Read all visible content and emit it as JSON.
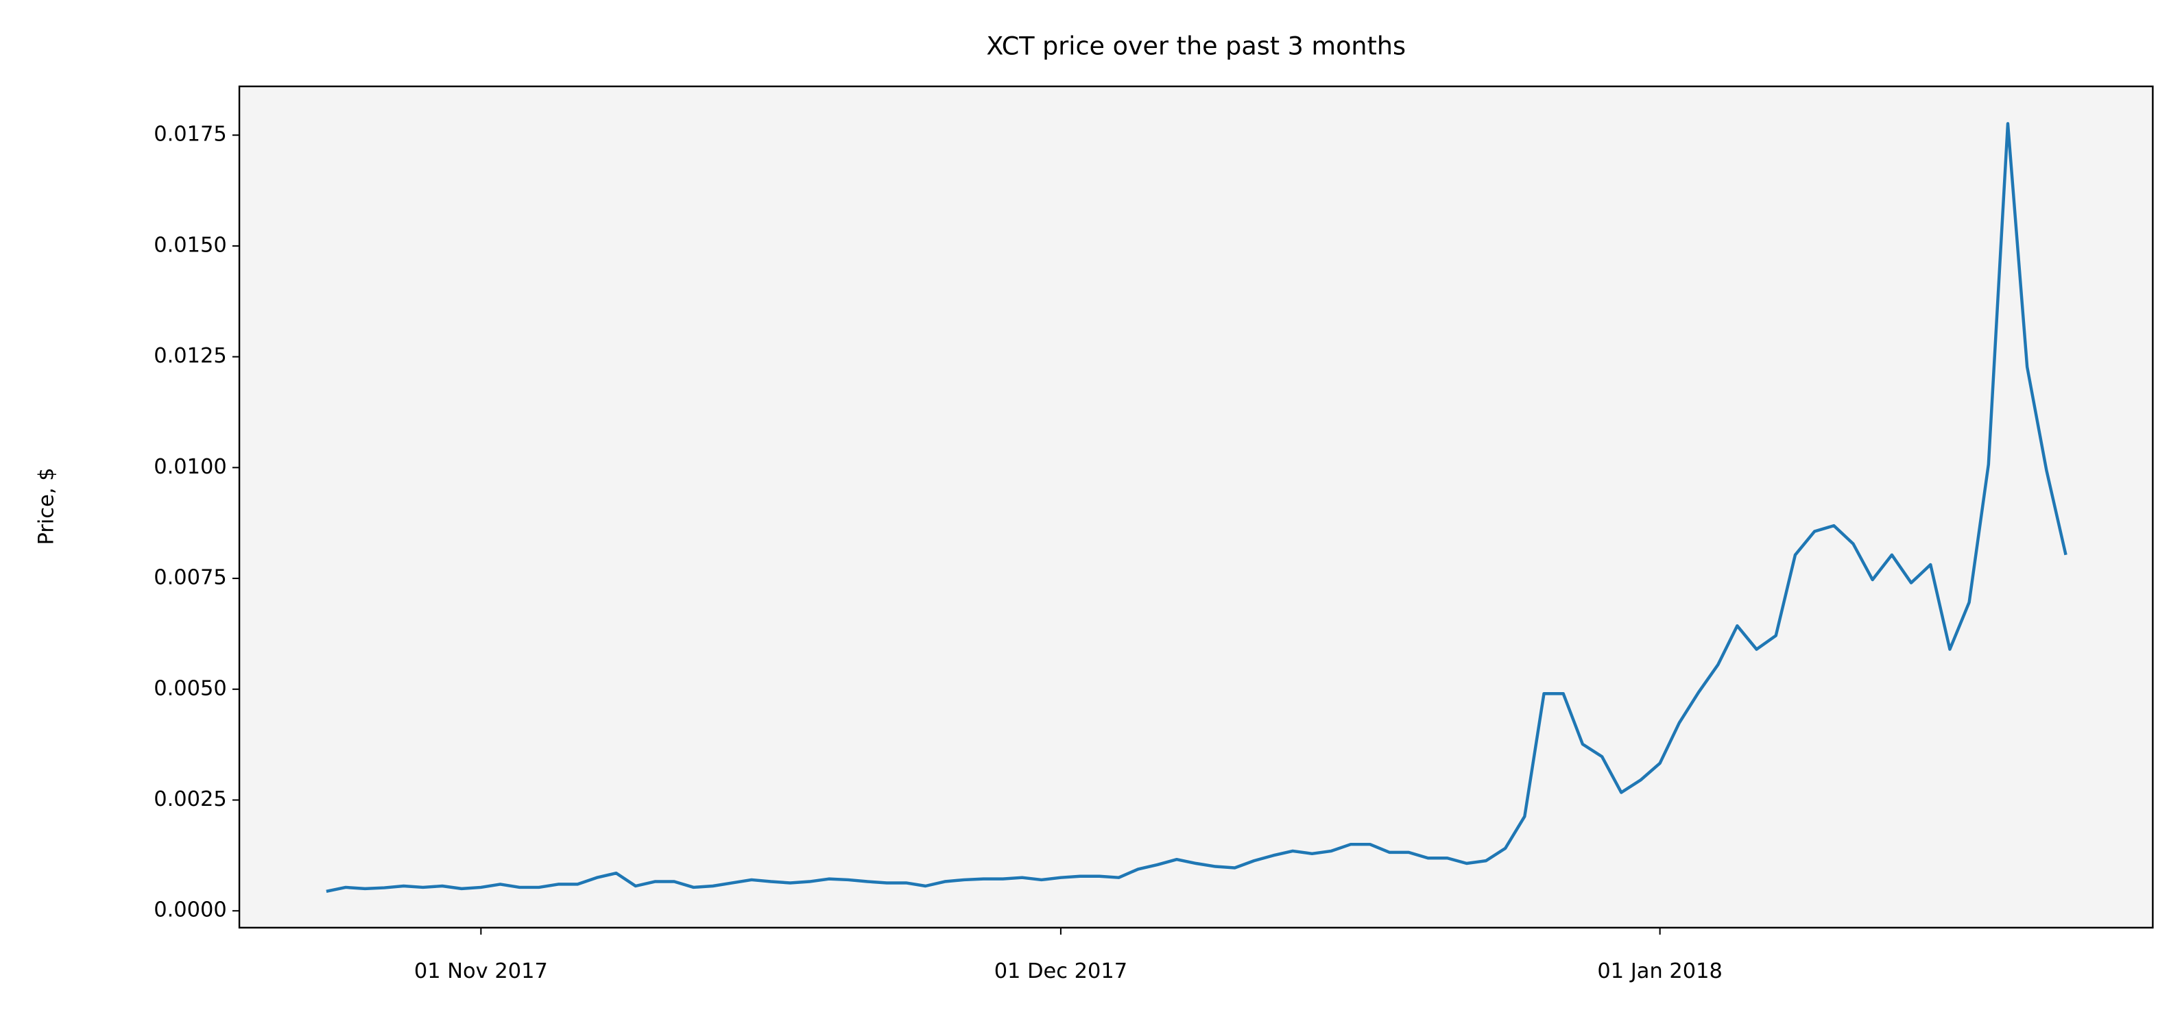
{
  "chart_data": {
    "type": "line",
    "title": "XCT price over the past 3 months",
    "ylabel": "Price, $",
    "x": [
      "2017-10-24",
      "2017-10-25",
      "2017-10-26",
      "2017-10-27",
      "2017-10-28",
      "2017-10-29",
      "2017-10-30",
      "2017-10-31",
      "2017-11-01",
      "2017-11-02",
      "2017-11-03",
      "2017-11-04",
      "2017-11-05",
      "2017-11-06",
      "2017-11-07",
      "2017-11-08",
      "2017-11-09",
      "2017-11-10",
      "2017-11-11",
      "2017-11-12",
      "2017-11-13",
      "2017-11-14",
      "2017-11-15",
      "2017-11-16",
      "2017-11-17",
      "2017-11-18",
      "2017-11-19",
      "2017-11-20",
      "2017-11-21",
      "2017-11-22",
      "2017-11-23",
      "2017-11-24",
      "2017-11-25",
      "2017-11-26",
      "2017-11-27",
      "2017-11-28",
      "2017-11-29",
      "2017-11-30",
      "2017-12-01",
      "2017-12-02",
      "2017-12-03",
      "2017-12-04",
      "2017-12-05",
      "2017-12-06",
      "2017-12-07",
      "2017-12-08",
      "2017-12-09",
      "2017-12-10",
      "2017-12-11",
      "2017-12-12",
      "2017-12-13",
      "2017-12-14",
      "2017-12-15",
      "2017-12-16",
      "2017-12-17",
      "2017-12-18",
      "2017-12-19",
      "2017-12-20",
      "2017-12-21",
      "2017-12-22",
      "2017-12-23",
      "2017-12-24",
      "2017-12-25",
      "2017-12-26",
      "2017-12-27",
      "2017-12-28",
      "2017-12-29",
      "2017-12-30",
      "2017-12-31",
      "2018-01-01",
      "2018-01-02",
      "2018-01-03",
      "2018-01-04",
      "2018-01-05",
      "2018-01-06",
      "2018-01-07",
      "2018-01-08",
      "2018-01-09",
      "2018-01-10",
      "2018-01-11",
      "2018-01-12",
      "2018-01-13",
      "2018-01-14",
      "2018-01-15",
      "2018-01-16",
      "2018-01-17",
      "2018-01-18",
      "2018-01-19",
      "2018-01-20",
      "2018-01-21",
      "2018-01-22"
    ],
    "values": [
      0.00044,
      0.00053,
      0.0005,
      0.00052,
      0.00056,
      0.00053,
      0.00056,
      0.0005,
      0.00053,
      0.0006,
      0.00053,
      0.00053,
      0.0006,
      0.0006,
      0.00075,
      0.00085,
      0.00056,
      0.00066,
      0.00066,
      0.00053,
      0.00056,
      0.00063,
      0.0007,
      0.00066,
      0.00063,
      0.00066,
      0.00072,
      0.0007,
      0.00066,
      0.00063,
      0.00063,
      0.00056,
      0.00066,
      0.0007,
      0.00072,
      0.00072,
      0.00075,
      0.0007,
      0.00075,
      0.00078,
      0.00078,
      0.00075,
      0.00094,
      0.00104,
      0.00116,
      0.00107,
      0.001,
      0.00097,
      0.00113,
      0.00125,
      0.00135,
      0.00129,
      0.00135,
      0.0015,
      0.0015,
      0.00132,
      0.00132,
      0.00119,
      0.00119,
      0.00107,
      0.00113,
      0.00141,
      0.00213,
      0.0049,
      0.0049,
      0.00376,
      0.00348,
      0.00267,
      0.00295,
      0.00333,
      0.00424,
      0.00493,
      0.00555,
      0.00643,
      0.0059,
      0.00621,
      0.00803,
      0.00856,
      0.00869,
      0.00828,
      0.00747,
      0.00803,
      0.0074,
      0.00781,
      0.0059,
      0.00696,
      0.01007,
      0.01776,
      0.01227,
      0.00994,
      0.00803
    ],
    "color": "#1f77b4",
    "xlim": [
      "2017-10-19T12:00",
      "2018-01-26T12:00"
    ],
    "xticks": [
      {
        "value": "2017-11-01",
        "label": "01 Nov 2017"
      },
      {
        "value": "2017-12-01",
        "label": "01 Dec 2017"
      },
      {
        "value": "2018-01-01",
        "label": "01 Jan 2018"
      }
    ],
    "ylim": [
      -0.00038,
      0.0186
    ],
    "yticks": [
      {
        "value": 0,
        "label": "0.0000"
      },
      0.0025,
      {
        "value": 0.005,
        "label": "0.0050"
      },
      0.0075,
      {
        "value": 0.01,
        "label": "0.0100"
      },
      0.0125,
      {
        "value": 0.015,
        "label": "0.0150"
      },
      0.0175
    ],
    "grid": false
  }
}
